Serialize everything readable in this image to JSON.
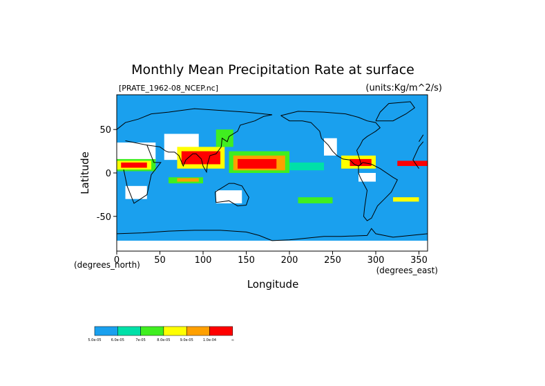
{
  "chart_data": {
    "type": "heatmap",
    "title": "Monthly Mean Precipitation Rate at surface",
    "subtitle_left": "[PRATE_1962-08_NCEP.nc]",
    "subtitle_right": "(units:Kg/m^2/s)",
    "xlabel": "Longitude",
    "ylabel": "Latitude",
    "x_unit_note": "(degrees_east)",
    "y_unit_note": "(degrees_north)",
    "xlim": [
      0,
      360
    ],
    "ylim": [
      -90,
      90
    ],
    "x_ticks": [
      0,
      50,
      100,
      150,
      200,
      250,
      300,
      350
    ],
    "y_ticks": [
      50,
      0,
      -50
    ],
    "background_color": "#1aa0ee",
    "missing_color": "#ffffff",
    "coastline_color": "#000000",
    "legend": {
      "placement": "bottom-left",
      "colors": [
        "#1aa0ee",
        "#00e0a8",
        "#40ee20",
        "#ffff00",
        "#ffa000",
        "#ff0000"
      ],
      "labels": [
        "5.0e-05",
        "6.0e-05",
        "7e-05",
        "8.0e-05",
        "9.0e-05",
        "1.0e-04",
        "∞"
      ]
    },
    "regions": [
      {
        "level": 0,
        "lon": [
          55,
          95
        ],
        "lat": [
          15,
          45
        ]
      },
      {
        "level": 0,
        "lon": [
          0,
          45
        ],
        "lat": [
          10,
          35
        ]
      },
      {
        "level": 0,
        "lon": [
          240,
          255
        ],
        "lat": [
          20,
          40
        ]
      },
      {
        "level": 0,
        "lon": [
          280,
          300
        ],
        "lat": [
          -10,
          0
        ]
      },
      {
        "level": 0,
        "lon": [
          115,
          145
        ],
        "lat": [
          -35,
          -20
        ]
      },
      {
        "level": 0,
        "lon": [
          10,
          35
        ],
        "lat": [
          -30,
          -15
        ]
      },
      {
        "level": 0,
        "lon": [
          0,
          360
        ],
        "lat": [
          -90,
          -78
        ]
      },
      {
        "level": 2,
        "lon": [
          0,
          45
        ],
        "lat": [
          2,
          16
        ]
      },
      {
        "level": 3,
        "lon": [
          0,
          40
        ],
        "lat": [
          4,
          14
        ]
      },
      {
        "level": 5,
        "lon": [
          5,
          35
        ],
        "lat": [
          6,
          12
        ]
      },
      {
        "level": 3,
        "lon": [
          70,
          125
        ],
        "lat": [
          5,
          30
        ]
      },
      {
        "level": 5,
        "lon": [
          75,
          120
        ],
        "lat": [
          10,
          25
        ]
      },
      {
        "level": 2,
        "lon": [
          130,
          200
        ],
        "lat": [
          0,
          25
        ]
      },
      {
        "level": 4,
        "lon": [
          135,
          195
        ],
        "lat": [
          3,
          20
        ]
      },
      {
        "level": 5,
        "lon": [
          140,
          185
        ],
        "lat": [
          5,
          16
        ]
      },
      {
        "level": 1,
        "lon": [
          200,
          240
        ],
        "lat": [
          3,
          12
        ]
      },
      {
        "level": 3,
        "lon": [
          260,
          300
        ],
        "lat": [
          5,
          20
        ]
      },
      {
        "level": 5,
        "lon": [
          270,
          295
        ],
        "lat": [
          8,
          16
        ]
      },
      {
        "level": 2,
        "lon": [
          60,
          100
        ],
        "lat": [
          -12,
          -5
        ]
      },
      {
        "level": 4,
        "lon": [
          70,
          95
        ],
        "lat": [
          -10,
          -6
        ]
      },
      {
        "level": 2,
        "lon": [
          210,
          250
        ],
        "lat": [
          -35,
          -28
        ]
      },
      {
        "level": 3,
        "lon": [
          320,
          350
        ],
        "lat": [
          -33,
          -28
        ]
      },
      {
        "level": 2,
        "lon": [
          115,
          135
        ],
        "lat": [
          30,
          50
        ]
      },
      {
        "level": 5,
        "lon": [
          325,
          360
        ],
        "lat": [
          8,
          14
        ]
      }
    ],
    "coastlines": [
      [
        [
          350,
          36
        ],
        [
          355,
          44
        ],
        [
          0,
          50
        ],
        [
          10,
          58
        ],
        [
          25,
          62
        ],
        [
          40,
          68
        ],
        [
          60,
          70
        ],
        [
          90,
          74
        ],
        [
          120,
          72
        ],
        [
          150,
          70
        ],
        [
          180,
          67
        ]
      ],
      [
        [
          350,
          36
        ],
        [
          10,
          37
        ],
        [
          35,
          32
        ],
        [
          43,
          12
        ],
        [
          51,
          12
        ],
        [
          40,
          -2
        ],
        [
          35,
          -25
        ],
        [
          20,
          -35
        ],
        [
          12,
          -15
        ],
        [
          8,
          4
        ],
        [
          -10,
          5
        ],
        [
          -17,
          15
        ],
        [
          -10,
          30
        ],
        [
          -5,
          36
        ]
      ],
      [
        [
          35,
          32
        ],
        [
          50,
          30
        ],
        [
          57,
          25
        ],
        [
          60,
          24
        ],
        [
          67,
          24
        ],
        [
          72,
          20
        ],
        [
          77,
          8
        ],
        [
          80,
          15
        ],
        [
          88,
          22
        ],
        [
          92,
          22
        ],
        [
          98,
          16
        ],
        [
          100,
          8
        ],
        [
          104,
          1
        ],
        [
          105,
          10
        ],
        [
          108,
          20
        ],
        [
          115,
          22
        ],
        [
          121,
          30
        ],
        [
          122,
          40
        ],
        [
          128,
          36
        ],
        [
          130,
          42
        ],
        [
          140,
          48
        ],
        [
          143,
          55
        ],
        [
          160,
          60
        ],
        [
          170,
          65
        ],
        [
          180,
          67
        ]
      ],
      [
        [
          114,
          -22
        ],
        [
          115,
          -34
        ],
        [
          130,
          -32
        ],
        [
          140,
          -38
        ],
        [
          150,
          -37
        ],
        [
          153,
          -28
        ],
        [
          145,
          -15
        ],
        [
          136,
          -12
        ],
        [
          130,
          -12
        ],
        [
          114,
          -22
        ]
      ],
      [
        [
          190,
          66
        ],
        [
          200,
          60
        ],
        [
          215,
          60
        ],
        [
          225,
          58
        ],
        [
          235,
          48
        ],
        [
          237,
          40
        ],
        [
          245,
          32
        ],
        [
          250,
          25
        ],
        [
          255,
          20
        ],
        [
          262,
          16
        ],
        [
          270,
          15
        ],
        [
          275,
          10
        ],
        [
          280,
          8
        ],
        [
          283,
          10
        ],
        [
          280,
          20
        ],
        [
          278,
          26
        ],
        [
          282,
          32
        ],
        [
          285,
          38
        ],
        [
          290,
          42
        ],
        [
          295,
          45
        ],
        [
          300,
          48
        ],
        [
          305,
          52
        ],
        [
          300,
          58
        ],
        [
          290,
          60
        ],
        [
          280,
          64
        ],
        [
          265,
          68
        ],
        [
          240,
          70
        ],
        [
          210,
          71
        ],
        [
          190,
          66
        ]
      ],
      [
        [
          280,
          8
        ],
        [
          285,
          12
        ],
        [
          295,
          10
        ],
        [
          305,
          5
        ],
        [
          320,
          -5
        ],
        [
          325,
          -8
        ],
        [
          318,
          -22
        ],
        [
          310,
          -30
        ],
        [
          302,
          -38
        ],
        [
          295,
          -52
        ],
        [
          290,
          -55
        ],
        [
          286,
          -50
        ],
        [
          287,
          -40
        ],
        [
          290,
          -20
        ],
        [
          282,
          -5
        ],
        [
          280,
          0
        ],
        [
          280,
          8
        ]
      ],
      [
        [
          300,
          60
        ],
        [
          305,
          70
        ],
        [
          315,
          80
        ],
        [
          340,
          82
        ],
        [
          345,
          75
        ],
        [
          335,
          68
        ],
        [
          320,
          60
        ],
        [
          300,
          60
        ]
      ],
      [
        [
          0,
          -70
        ],
        [
          30,
          -69
        ],
        [
          60,
          -67
        ],
        [
          90,
          -66
        ],
        [
          120,
          -66
        ],
        [
          150,
          -68
        ],
        [
          165,
          -72
        ],
        [
          180,
          -78
        ],
        [
          200,
          -77
        ],
        [
          220,
          -75
        ],
        [
          240,
          -73
        ],
        [
          260,
          -73
        ],
        [
          290,
          -72
        ],
        [
          295,
          -64
        ],
        [
          300,
          -70
        ],
        [
          320,
          -74
        ],
        [
          340,
          -72
        ],
        [
          360,
          -70
        ]
      ]
    ]
  }
}
